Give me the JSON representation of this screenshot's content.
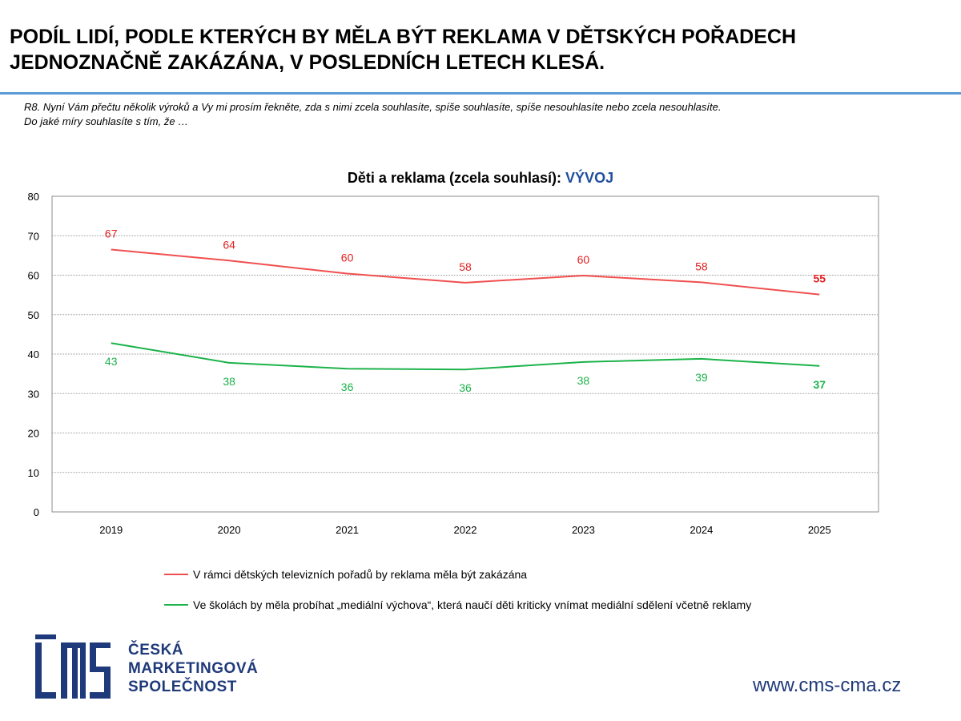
{
  "header": {
    "title_line1": "PODÍL LIDÍ, PODLE KTERÝCH BY MĚLA BÝT REKLAMA V DĚTSKÝCH POŘADECH",
    "title_line2": "JEDNOZNAČNĚ ZAKÁZÁNA, V POSLEDNÍCH LETECH KLESÁ.",
    "question_line1": "R8. Nyní Vám přečtu několik výroků a Vy mi prosím řekněte, zda s nimi zcela souhlasíte, spíše souhlasíte, spíše nesouhlasíte nebo zcela nesouhlasíte.",
    "question_line2": "Do jaké míry souhlasíte s tím, že …"
  },
  "chart_data": {
    "type": "line",
    "title": "Děti a reklama (zcela souhlasí):",
    "title_accent": "VÝVOJ",
    "categories": [
      "2019",
      "2020",
      "2021",
      "2022",
      "2023",
      "2024",
      "2025"
    ],
    "ylim": [
      0,
      80
    ],
    "yticks": [
      0,
      10,
      20,
      30,
      40,
      50,
      60,
      70,
      80
    ],
    "grid": true,
    "legend_position": "bottom",
    "series": [
      {
        "name": "V rámci dětských televizních pořadů by reklama měla být zakázána",
        "color": "#f04f4f",
        "label_color": "#e02020",
        "values": [
          66.5,
          63.7,
          60.4,
          58.1,
          59.9,
          58.2,
          55.1
        ],
        "labels": [
          "67",
          "64",
          "60",
          "58",
          "60",
          "58",
          "55"
        ],
        "label_position": "above"
      },
      {
        "name": "Ve školách by měla probíhat „mediální výchova“, která naučí děti kriticky vnímat mediální sdělení včetně reklamy",
        "color": "#1cb34a",
        "label_color": "#1cb34a",
        "values": [
          42.8,
          37.8,
          36.3,
          36.1,
          38.0,
          38.8,
          37.0
        ],
        "labels": [
          "43",
          "38",
          "36",
          "36",
          "38",
          "39",
          "37"
        ],
        "label_position": "below"
      }
    ]
  },
  "footer": {
    "logo_line1": "ČESKÁ",
    "logo_line2": "MARKETINGOVÁ",
    "logo_line3": "SPOLEČNOST",
    "url": "www.cms-cma.cz",
    "brand_color": "#1f3a7a"
  }
}
